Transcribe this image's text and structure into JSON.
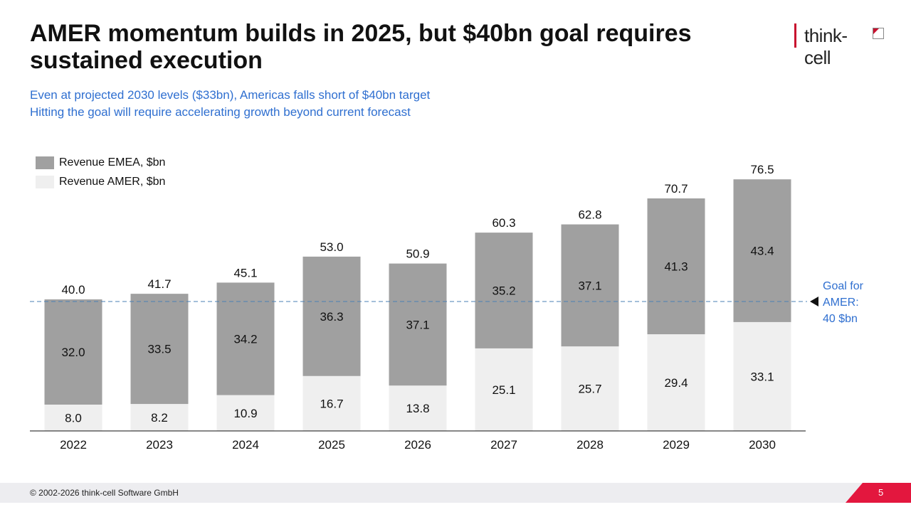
{
  "title": "AMER momentum builds in 2025, but $40bn goal requires sustained execution",
  "subtitle_lines": [
    "Even at projected 2030 levels ($33bn), Americas falls short of $40bn target",
    "Hitting the goal will require accelerating growth beyond current forecast"
  ],
  "logo": "think-cell",
  "footer": {
    "copyright": "© 2002-2026 think-cell Software GmbH",
    "page": "5"
  },
  "colors": {
    "emea": "#a0a0a0",
    "amer": "#efefef",
    "accent": "#2f6fd0",
    "brand": "#e3173e"
  },
  "chart_data": {
    "type": "bar",
    "stacked": true,
    "categories": [
      "2022",
      "2023",
      "2024",
      "2025",
      "2026",
      "2027",
      "2028",
      "2029",
      "2030"
    ],
    "series": [
      {
        "name": "Revenue AMER, $bn",
        "values": [
          8.0,
          8.2,
          10.9,
          16.7,
          13.8,
          25.1,
          25.7,
          29.4,
          33.1
        ]
      },
      {
        "name": "Revenue EMEA, $bn",
        "values": [
          32.0,
          33.5,
          34.2,
          36.3,
          37.1,
          35.2,
          37.1,
          41.3,
          43.4
        ]
      }
    ],
    "totals": [
      "40.0",
      "41.7",
      "45.1",
      "53.0",
      "50.9",
      "60.3",
      "62.8",
      "70.7",
      "76.5"
    ],
    "reference_line": {
      "value": 40,
      "label_lines": [
        "Goal for",
        "AMER:",
        "40 $bn"
      ]
    },
    "legend_placement": "top-left",
    "ylim": [
      0,
      80
    ]
  }
}
